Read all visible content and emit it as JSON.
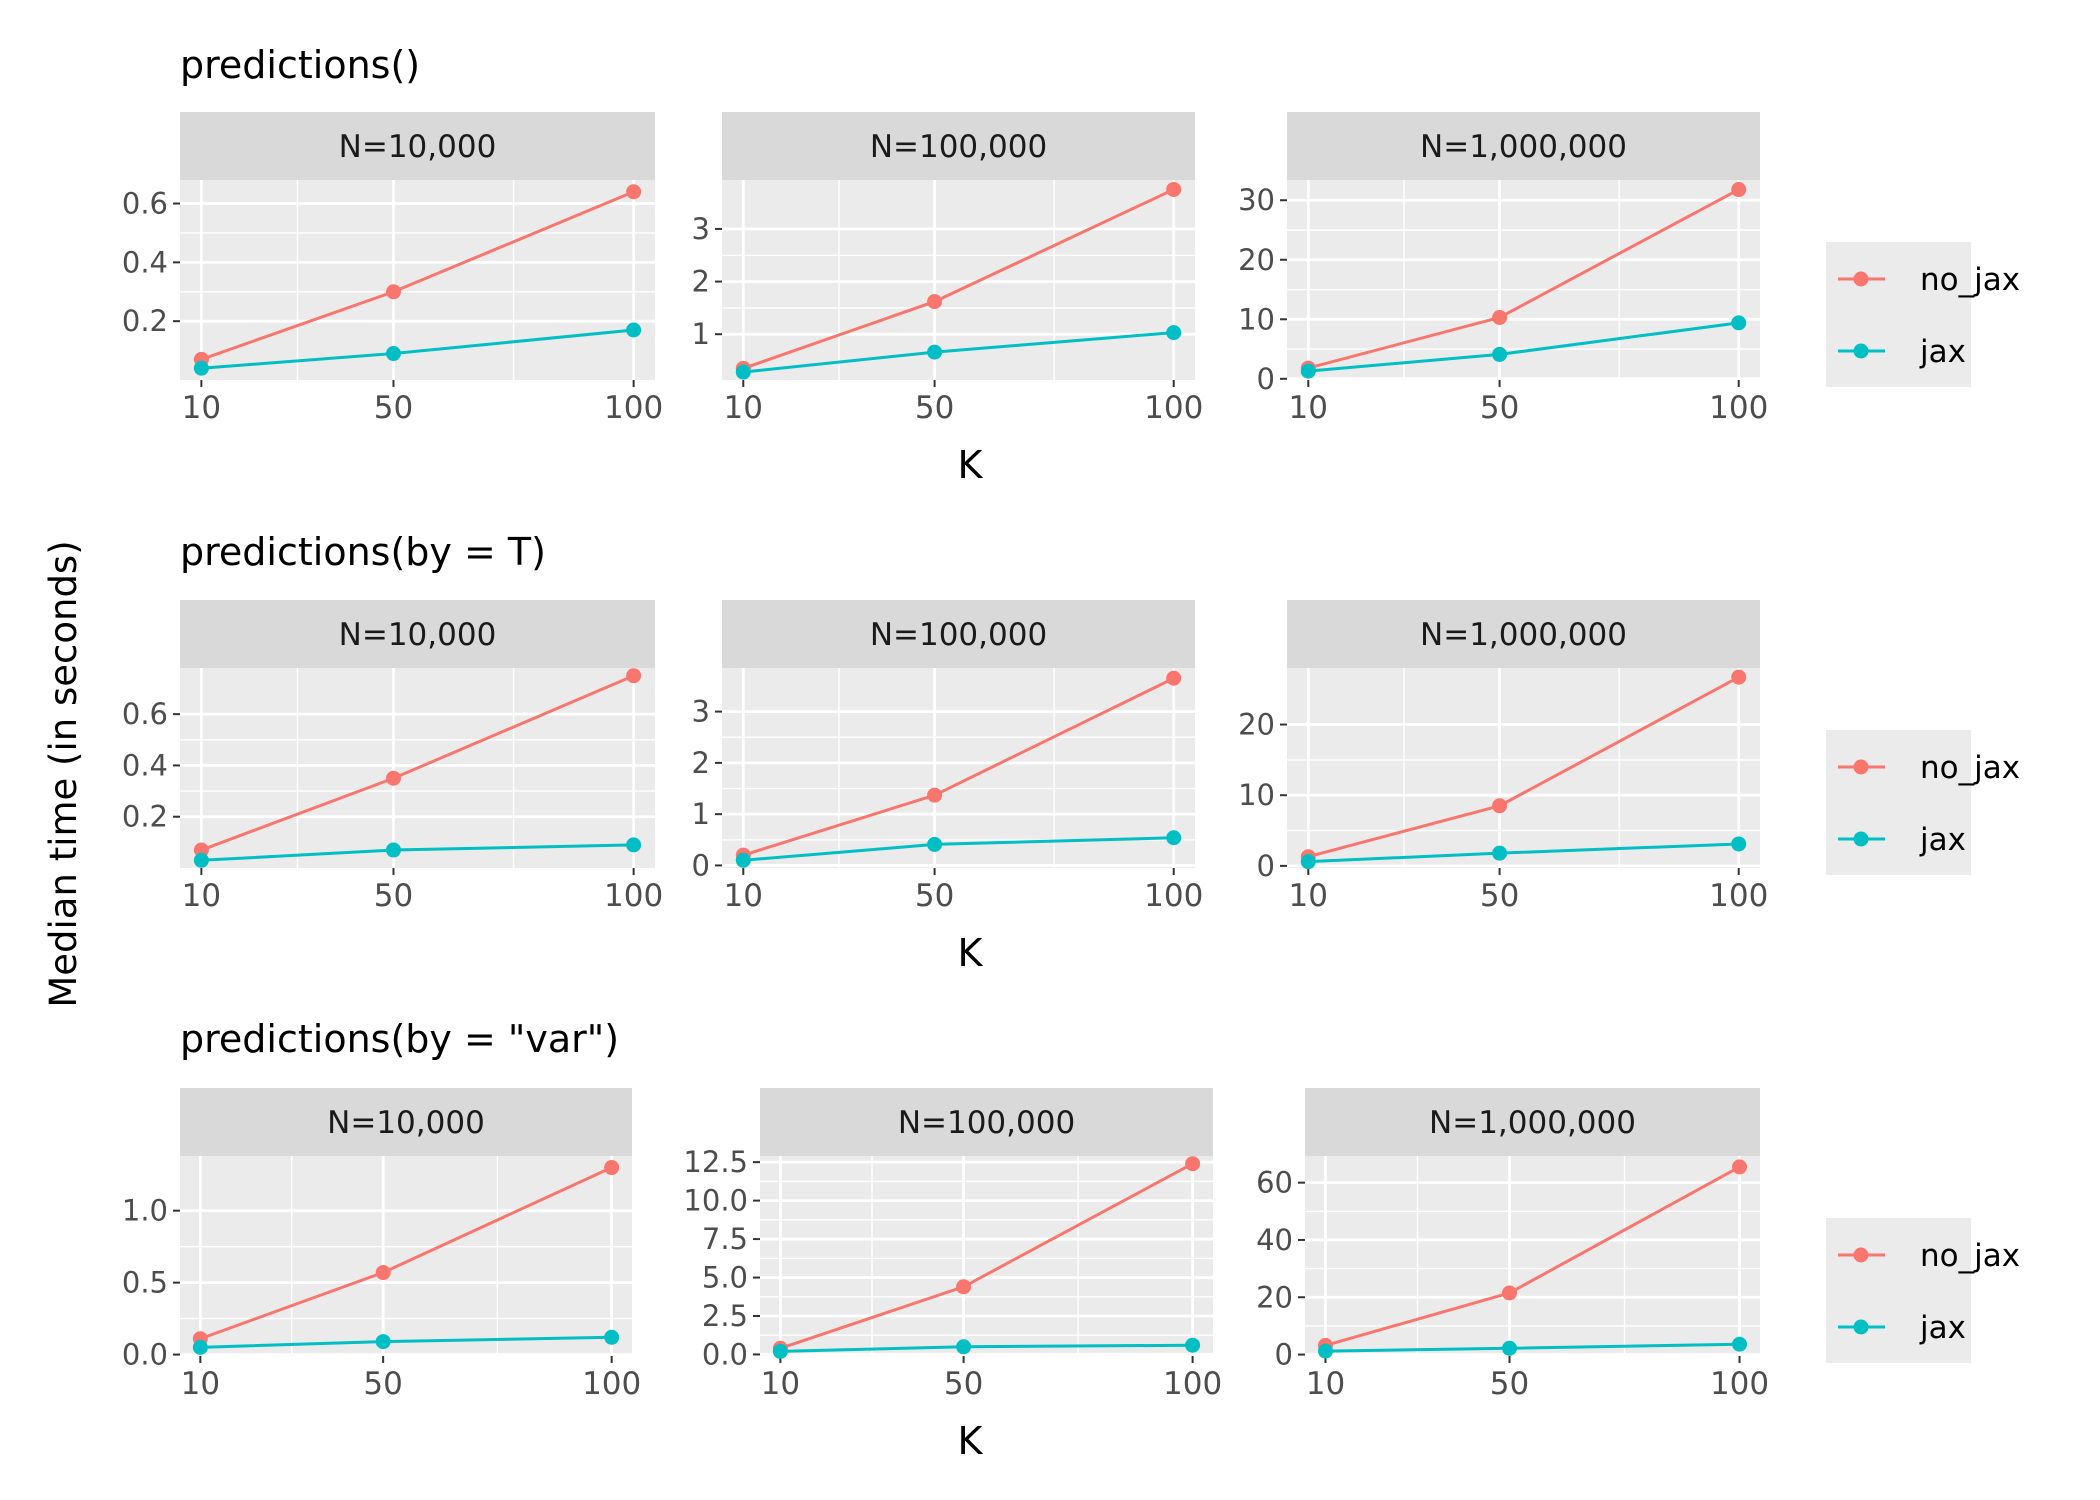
{
  "ylabel": "Median time (in seconds)",
  "xlabel": "K",
  "legend": [
    {
      "name": "no_jax",
      "color": "#F8766D"
    },
    {
      "name": "jax",
      "color": "#00BFC4"
    }
  ],
  "chart_data": [
    {
      "type": "line",
      "title": "predictions()",
      "panels": [
        {
          "strip": "N=10,000",
          "x": [
            10,
            50,
            100
          ],
          "xticks": [
            "10",
            "50",
            "100"
          ],
          "ylim": [
            0.0,
            0.68
          ],
          "yticks": [
            0.2,
            0.4,
            0.6
          ],
          "ytick_labels": [
            "0.2",
            "0.4",
            "0.6"
          ],
          "series": [
            {
              "name": "no_jax",
              "values": [
                0.07,
                0.3,
                0.64
              ]
            },
            {
              "name": "jax",
              "values": [
                0.04,
                0.09,
                0.17
              ]
            }
          ]
        },
        {
          "strip": "N=100,000",
          "x": [
            10,
            50,
            100
          ],
          "xticks": [
            "10",
            "50",
            "100"
          ],
          "ylim": [
            0.13,
            3.93
          ],
          "yticks": [
            1,
            2,
            3
          ],
          "ytick_labels": [
            "1",
            "2",
            "3"
          ],
          "series": [
            {
              "name": "no_jax",
              "values": [
                0.35,
                1.62,
                3.75
              ]
            },
            {
              "name": "jax",
              "values": [
                0.28,
                0.66,
                1.03
              ]
            }
          ]
        },
        {
          "strip": "N=1,000,000",
          "x": [
            10,
            50,
            100
          ],
          "xticks": [
            "10",
            "50",
            "100"
          ],
          "ylim": [
            -0.2,
            33.4
          ],
          "yticks": [
            0,
            10,
            20,
            30
          ],
          "ytick_labels": [
            "0",
            "10",
            "20",
            "30"
          ],
          "series": [
            {
              "name": "no_jax",
              "values": [
                1.8,
                10.3,
                31.8
              ]
            },
            {
              "name": "jax",
              "values": [
                1.3,
                4.1,
                9.4
              ]
            }
          ]
        }
      ]
    },
    {
      "type": "line",
      "title": "predictions(by = T)",
      "panels": [
        {
          "strip": "N=10,000",
          "x": [
            10,
            50,
            100
          ],
          "xticks": [
            "10",
            "50",
            "100"
          ],
          "ylim": [
            0.0,
            0.78
          ],
          "yticks": [
            0.2,
            0.4,
            0.6
          ],
          "ytick_labels": [
            "0.2",
            "0.4",
            "0.6"
          ],
          "series": [
            {
              "name": "no_jax",
              "values": [
                0.07,
                0.35,
                0.75
              ]
            },
            {
              "name": "jax",
              "values": [
                0.03,
                0.07,
                0.09
              ]
            }
          ]
        },
        {
          "strip": "N=100,000",
          "x": [
            10,
            50,
            100
          ],
          "xticks": [
            "10",
            "50",
            "100"
          ],
          "ylim": [
            -0.05,
            3.85
          ],
          "yticks": [
            0,
            1,
            2,
            3
          ],
          "ytick_labels": [
            "0",
            "1",
            "2",
            "3"
          ],
          "series": [
            {
              "name": "no_jax",
              "values": [
                0.2,
                1.37,
                3.65
              ]
            },
            {
              "name": "jax",
              "values": [
                0.1,
                0.41,
                0.54
              ]
            }
          ]
        },
        {
          "strip": "N=1,000,000",
          "x": [
            10,
            50,
            100
          ],
          "xticks": [
            "10",
            "50",
            "100"
          ],
          "ylim": [
            -0.3,
            28.0
          ],
          "yticks": [
            0,
            10,
            20
          ],
          "ytick_labels": [
            "0",
            "10",
            "20"
          ],
          "series": [
            {
              "name": "no_jax",
              "values": [
                1.3,
                8.5,
                26.7
              ]
            },
            {
              "name": "jax",
              "values": [
                0.6,
                1.8,
                3.1
              ]
            }
          ]
        }
      ]
    },
    {
      "type": "line",
      "title": "predictions(by = \"var\")",
      "panels": [
        {
          "strip": "N=10,000",
          "x": [
            10,
            50,
            100
          ],
          "xticks": [
            "10",
            "50",
            "100"
          ],
          "ylim": [
            -0.01,
            1.38
          ],
          "yticks": [
            0.0,
            0.5,
            1.0
          ],
          "ytick_labels": [
            "0.0",
            "0.5",
            "1.0"
          ],
          "series": [
            {
              "name": "no_jax",
              "values": [
                0.11,
                0.57,
                1.3
              ]
            },
            {
              "name": "jax",
              "values": [
                0.05,
                0.09,
                0.12
              ]
            }
          ]
        },
        {
          "strip": "N=100,000",
          "x": [
            10,
            50,
            100
          ],
          "xticks": [
            "10",
            "50",
            "100"
          ],
          "ylim": [
            -0.1,
            12.9
          ],
          "yticks": [
            0.0,
            2.5,
            5.0,
            7.5,
            10.0,
            12.5
          ],
          "ytick_labels": [
            "0.0",
            "2.5",
            "5.0",
            "7.5",
            "10.0",
            "12.5"
          ],
          "series": [
            {
              "name": "no_jax",
              "values": [
                0.4,
                4.4,
                12.4
              ]
            },
            {
              "name": "jax",
              "values": [
                0.2,
                0.5,
                0.6
              ]
            }
          ]
        },
        {
          "strip": "N=1,000,000",
          "x": [
            10,
            50,
            100
          ],
          "xticks": [
            "10",
            "50",
            "100"
          ],
          "ylim": [
            -0.5,
            69.3
          ],
          "yticks": [
            0,
            20,
            40,
            60
          ],
          "ytick_labels": [
            "0",
            "20",
            "40",
            "60"
          ],
          "series": [
            {
              "name": "no_jax",
              "values": [
                3.2,
                21.5,
                65.5
              ]
            },
            {
              "name": "jax",
              "values": [
                1.2,
                2.2,
                3.6
              ]
            }
          ]
        }
      ]
    }
  ]
}
